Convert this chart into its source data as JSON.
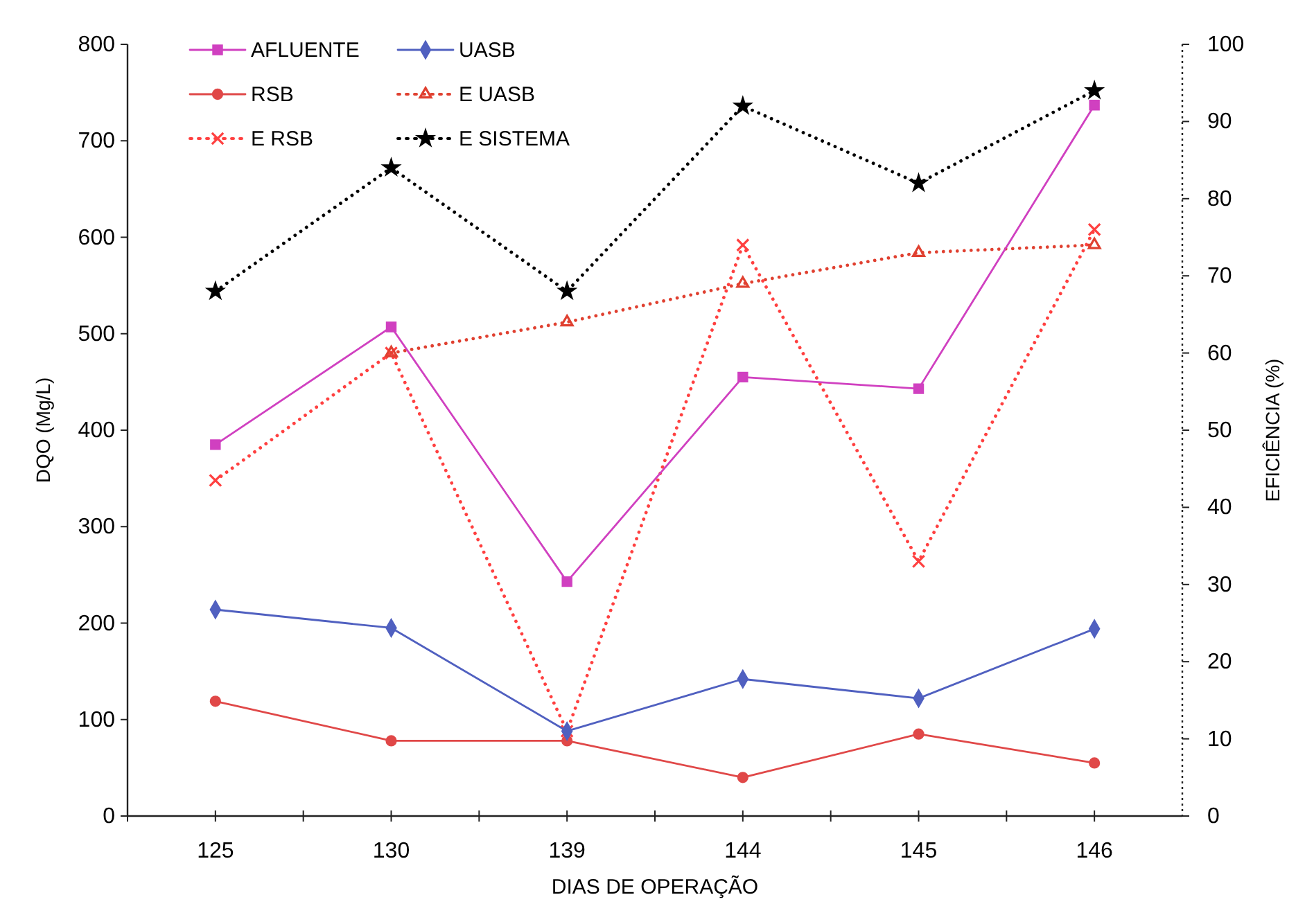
{
  "chart_data": {
    "type": "line",
    "xlabel": "DIAS DE OPERAÇÃO",
    "ylabel": "DQO (Mg/L)",
    "y2label": "EFICIÊNCIA (%)",
    "categories": [
      "125",
      "130",
      "139",
      "144",
      "145",
      "146"
    ],
    "ylim": [
      0,
      800
    ],
    "yticks": [
      0,
      100,
      200,
      300,
      400,
      500,
      600,
      700,
      800
    ],
    "y2lim": [
      0,
      100
    ],
    "y2ticks": [
      0,
      10,
      20,
      30,
      40,
      50,
      60,
      70,
      80,
      90,
      100
    ],
    "grid": false,
    "legend": "top left",
    "series": [
      {
        "name": "AFLUENTE",
        "color": "#d040c0",
        "marker": "square",
        "line_style": "solid",
        "values": [
          385,
          507,
          243,
          455,
          443,
          737
        ]
      },
      {
        "name": "UASB",
        "color": "#5060c0",
        "marker": "diamond",
        "line_style": "solid",
        "values": [
          214,
          195,
          88,
          142,
          122,
          194
        ]
      },
      {
        "name": "RSB",
        "color": "#e04848",
        "marker": "circle",
        "line_style": "solid",
        "values": [
          119,
          78,
          78,
          40,
          85,
          55
        ]
      },
      {
        "name": "E UASB",
        "color": "#e04030",
        "marker": "triangle",
        "line_style": "dotted",
        "axis": "y2",
        "values": [
          null,
          60,
          64,
          69,
          73,
          74
        ]
      },
      {
        "name": "E RSB",
        "color": "#ff4040",
        "marker": "cross",
        "line_style": "dotted",
        "axis": "y2",
        "values": [
          43.5,
          60,
          11,
          74,
          33,
          76
        ]
      },
      {
        "name": "E SISTEMA",
        "color": "#000000",
        "marker": "star",
        "line_style": "dotted",
        "axis": "y2",
        "values": [
          68,
          84,
          68,
          92,
          82,
          94
        ]
      }
    ]
  }
}
